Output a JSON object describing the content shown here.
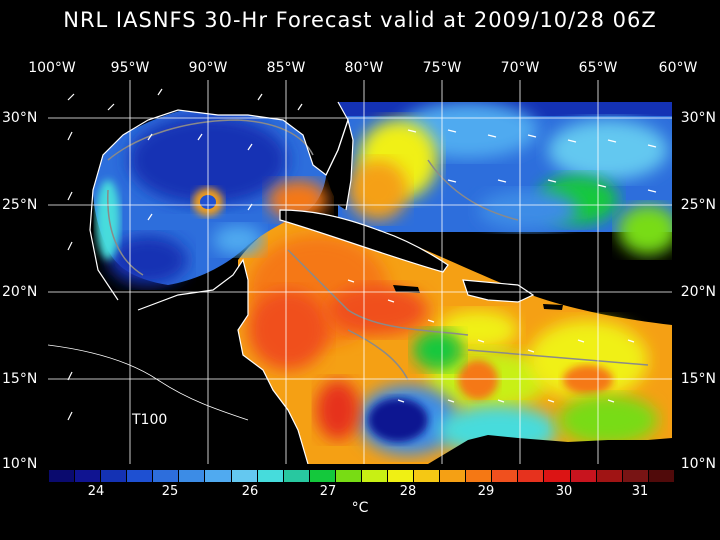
{
  "title": "NRL IASNFS  30-Hr Forecast valid at 2009/10/28 06Z",
  "lon_labels": [
    "100°W",
    "95°W",
    "90°W",
    "85°W",
    "80°W",
    "75°W",
    "70°W",
    "65°W",
    "60°W"
  ],
  "lat_labels": [
    "30°N",
    "25°N",
    "20°N",
    "15°N",
    "10°N"
  ],
  "model_label": "T100",
  "colorbar": {
    "unit": "°C",
    "tick_labels": [
      "24",
      "25",
      "26",
      "27",
      "28",
      "29",
      "30",
      "31"
    ],
    "colors": [
      "#0a0a6e",
      "#101491",
      "#1432b4",
      "#1e50d2",
      "#2d6edc",
      "#3c8ce6",
      "#50aaf0",
      "#64c8f0",
      "#46dcdc",
      "#28c8a0",
      "#14c83c",
      "#78dc14",
      "#c8f014",
      "#f0f014",
      "#f5c814",
      "#f5a014",
      "#f57814",
      "#f0501e",
      "#e6321e",
      "#dc1414",
      "#c8141e",
      "#a01414",
      "#781414",
      "#500a0a"
    ]
  },
  "regions": [
    {
      "name": "gulf-of-mexico",
      "color": "#2d6edc"
    },
    {
      "name": "caribbean-sea",
      "color": "#f57814"
    },
    {
      "name": "atlantic",
      "color": "#3c8ce6"
    }
  ]
}
